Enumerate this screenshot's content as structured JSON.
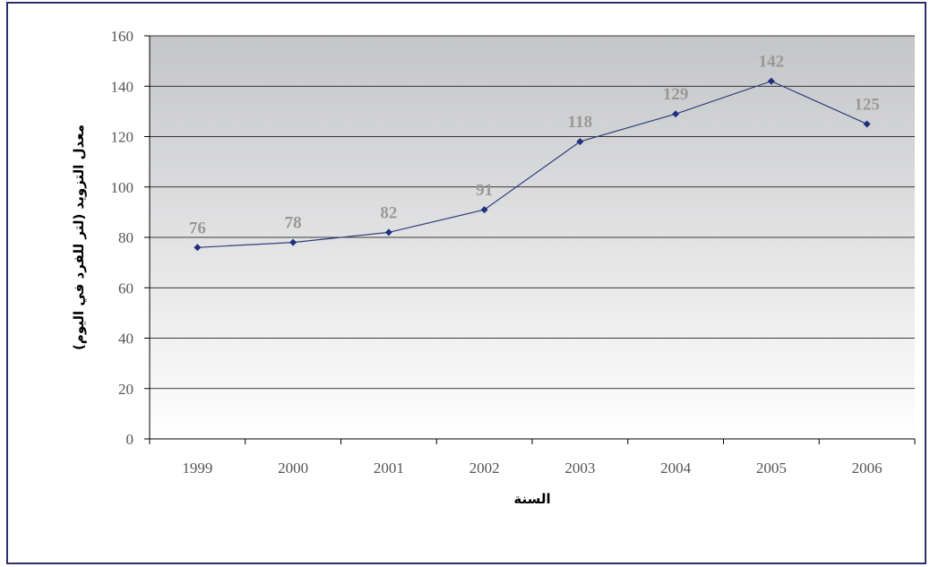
{
  "chart_data": {
    "type": "line",
    "title": "",
    "xlabel": "السنة",
    "ylabel": "معدل التزويد (لتر للفرد في اليوم)",
    "categories": [
      "1999",
      "2000",
      "2001",
      "2002",
      "2003",
      "2004",
      "2005",
      "2006"
    ],
    "series": [
      {
        "values": [
          76,
          78,
          82,
          91,
          118,
          129,
          142,
          125
        ]
      }
    ],
    "ylim": [
      0,
      160
    ],
    "yticks": [
      0,
      20,
      40,
      60,
      80,
      100,
      120,
      140,
      160
    ],
    "grid": true,
    "legend": "none",
    "data_labels": true,
    "colors": {
      "line": "#2e3f7f",
      "marker": "#1f2f80",
      "grid": "#000000",
      "data_label": "#999999",
      "border": "#2e2e6e"
    }
  }
}
